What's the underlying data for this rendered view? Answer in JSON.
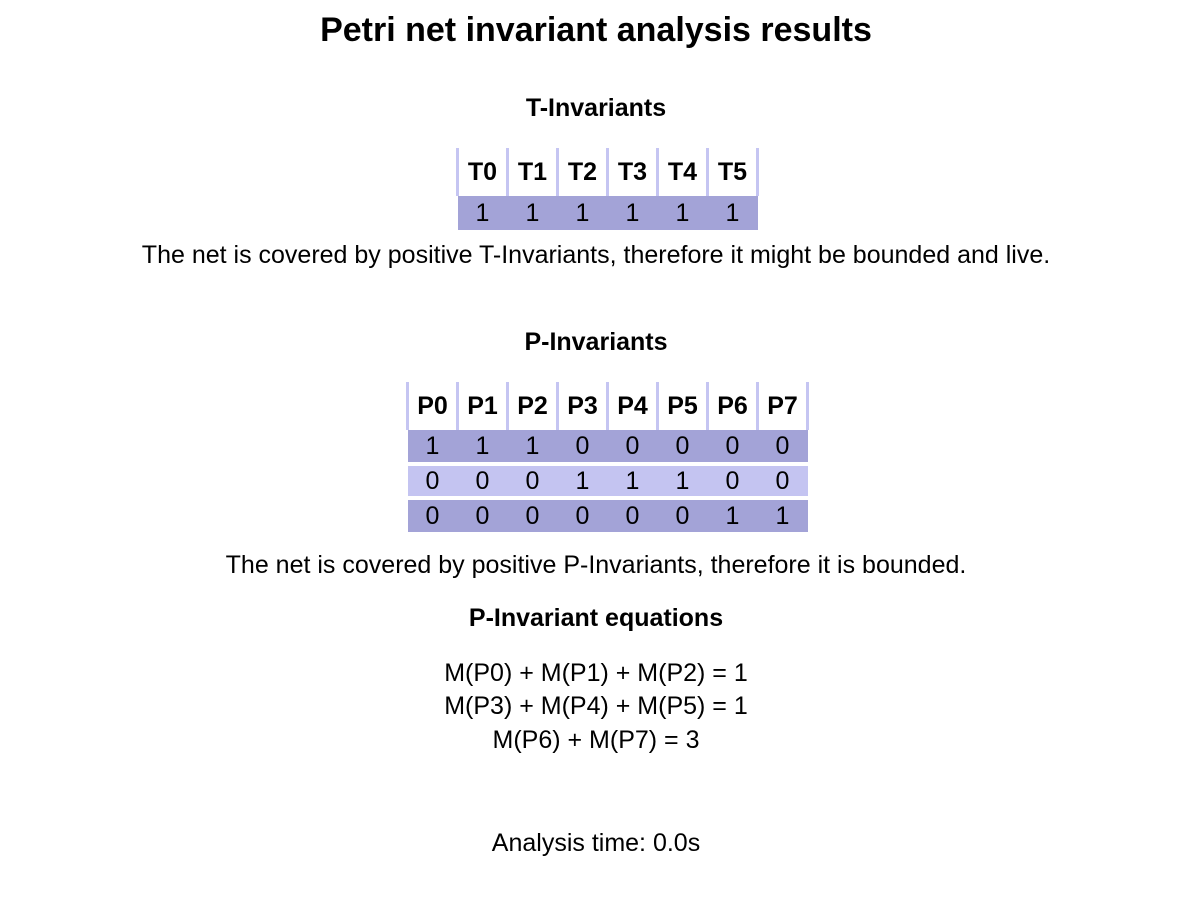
{
  "page": {
    "title": "Petri net invariant analysis results"
  },
  "t_invariants": {
    "heading": "T-Invariants",
    "headers": [
      "T0",
      "T1",
      "T2",
      "T3",
      "T4",
      "T5"
    ],
    "rows": [
      [
        "1",
        "1",
        "1",
        "1",
        "1",
        "1"
      ]
    ],
    "message": "The net is covered by positive T-Invariants, therefore it might be bounded and live."
  },
  "p_invariants": {
    "heading": "P-Invariants",
    "headers": [
      "P0",
      "P1",
      "P2",
      "P3",
      "P4",
      "P5",
      "P6",
      "P7"
    ],
    "rows": [
      [
        "1",
        "1",
        "1",
        "0",
        "0",
        "0",
        "0",
        "0"
      ],
      [
        "0",
        "0",
        "0",
        "1",
        "1",
        "1",
        "0",
        "0"
      ],
      [
        "0",
        "0",
        "0",
        "0",
        "0",
        "0",
        "1",
        "1"
      ]
    ],
    "message": "The net is covered by positive P-Invariants, therefore it is bounded."
  },
  "equations": {
    "heading": "P-Invariant equations",
    "lines": [
      "M(P0) + M(P1) + M(P2) = 1",
      "M(P3) + M(P4) + M(P5) = 1",
      "M(P6) + M(P7) = 3"
    ]
  },
  "footer": {
    "analysis_time": "Analysis time: 0.0s"
  },
  "colors": {
    "header_border": "#c5c5f2",
    "row_dark": "#a3a3d7",
    "row_light": "#c4c4f1"
  }
}
